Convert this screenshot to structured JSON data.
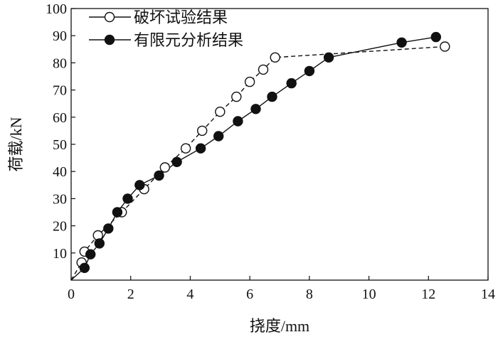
{
  "chart_data": {
    "type": "line",
    "xlabel": "挠度/mm",
    "ylabel": "荷载/kN",
    "xlim": [
      0,
      14
    ],
    "ylim": [
      0,
      100
    ],
    "xticks": [
      0,
      2,
      4,
      6,
      8,
      10,
      12,
      14
    ],
    "yticks": [
      10,
      20,
      30,
      40,
      50,
      60,
      70,
      80,
      90,
      100
    ],
    "grid": false,
    "legend_position": "top-left",
    "series": [
      {
        "name": "破坏试验结果",
        "marker": "open-circle",
        "line_style": "dashed",
        "color": "#111111",
        "x": [
          0.35,
          0.45,
          0.9,
          1.7,
          2.45,
          3.15,
          3.85,
          4.4,
          5.0,
          5.55,
          6.0,
          6.45,
          6.85,
          12.55
        ],
        "y": [
          6.5,
          10.5,
          16.5,
          25.0,
          33.5,
          41.5,
          48.5,
          55.0,
          62.0,
          67.5,
          73.0,
          77.5,
          82.0,
          86.0
        ]
      },
      {
        "name": "有限元分析结果",
        "marker": "filled-circle",
        "line_style": "solid",
        "color": "#111111",
        "x": [
          0.45,
          0.65,
          0.95,
          1.25,
          1.55,
          1.9,
          2.3,
          2.95,
          3.55,
          4.35,
          4.95,
          5.6,
          6.2,
          6.75,
          7.4,
          8.0,
          8.65,
          11.1,
          12.25
        ],
        "y": [
          4.5,
          9.5,
          13.5,
          19.0,
          25.0,
          30.0,
          35.0,
          38.5,
          43.5,
          48.5,
          53.0,
          58.5,
          63.0,
          67.5,
          72.5,
          77.0,
          82.0,
          87.5,
          89.5
        ]
      }
    ]
  }
}
